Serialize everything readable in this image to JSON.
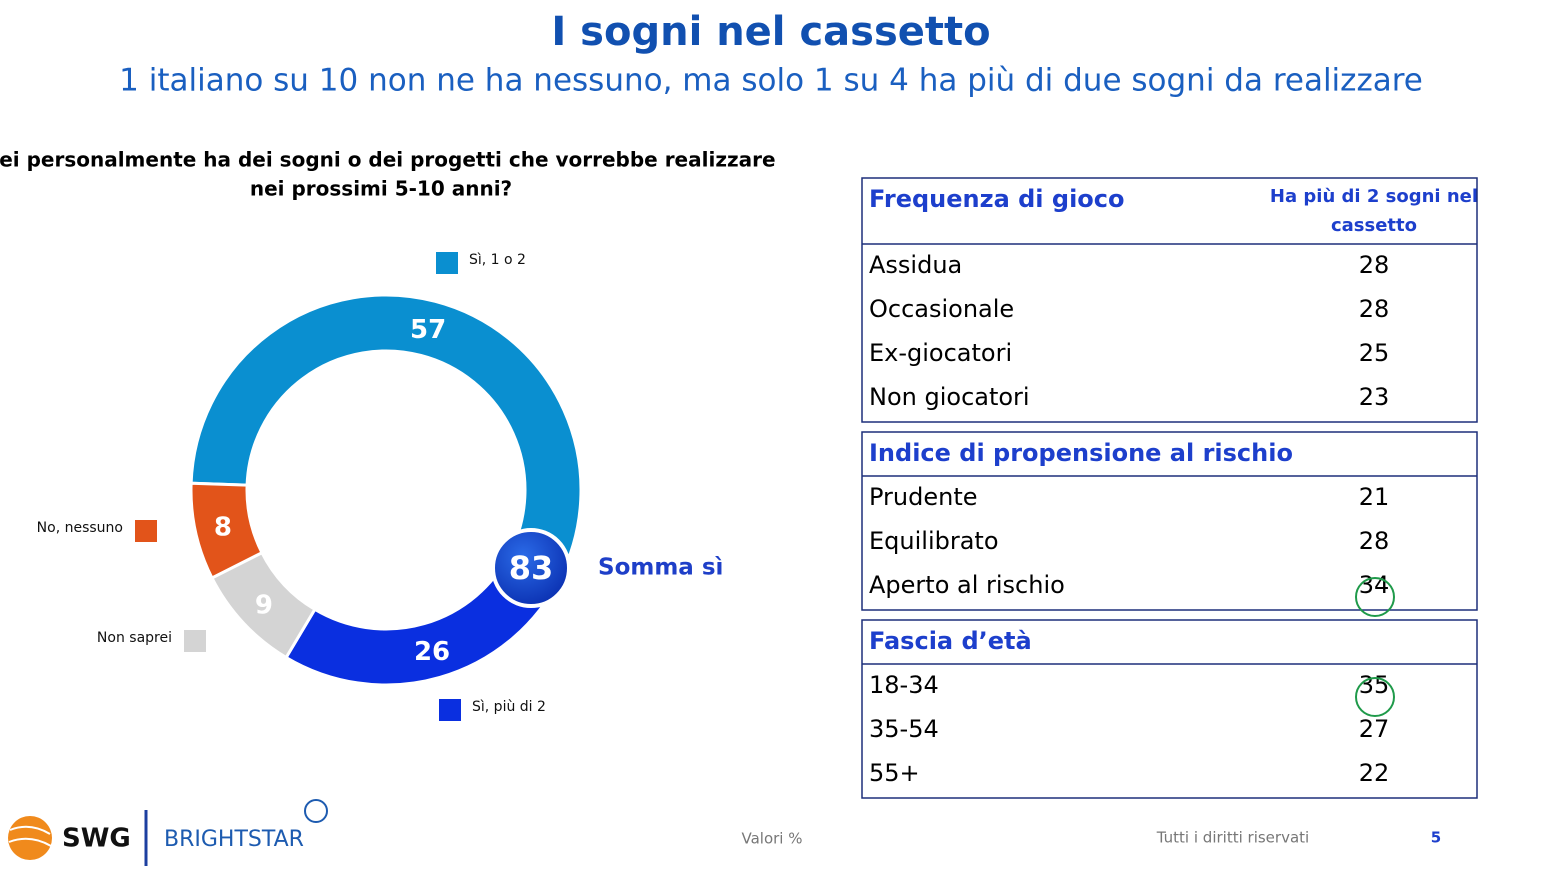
{
  "chart_data": {
    "type": "donut",
    "title": "I sogni nel cassetto",
    "subtitle": "1 italiano su 10 non ne ha nessuno, ma solo 1 su 4 ha più di due sogni da realizzare",
    "question": [
      "Lei personalmente ha dei sogni o dei progetti che vorrebbe realizzare",
      "nei prossimi 5-10 anni?"
    ],
    "categories": [
      "Sì, 1 o 2",
      "Sì, più di 2",
      "Non saprei",
      "No, nessuno"
    ],
    "values": [
      57,
      26,
      9,
      8
    ],
    "colors": [
      "#0a8fd0",
      "#0a2fe0",
      "#d4d4d4",
      "#e2541a"
    ],
    "sum": {
      "label": "Somma sì",
      "value": 83
    }
  },
  "table": {
    "column_header": [
      "Ha più di 2 sogni nel",
      "cassetto"
    ],
    "sections": [
      {
        "header": "Frequenza di gioco",
        "rows": [
          {
            "label": "Assidua",
            "value": 28
          },
          {
            "label": "Occasionale",
            "value": 28
          },
          {
            "label": "Ex-giocatori",
            "value": 25
          },
          {
            "label": "Non giocatori",
            "value": 23
          }
        ]
      },
      {
        "header": "Indice di propensione al rischio",
        "rows": [
          {
            "label": "Prudente",
            "value": 21
          },
          {
            "label": "Equilibrato",
            "value": 28
          },
          {
            "label": "Aperto al rischio",
            "value": 34,
            "highlight": true
          }
        ]
      },
      {
        "header": "Fascia d’età",
        "rows": [
          {
            "label": "18-34",
            "value": 35,
            "highlight": true
          },
          {
            "label": "35-54",
            "value": 27
          },
          {
            "label": "55+",
            "value": 22
          }
        ]
      }
    ]
  },
  "footer": {
    "logo_left": "SWG",
    "logo_right": "BRIGHTSTAR",
    "note": "Valori %",
    "rights": "Tutti i diritti riservati",
    "page": "5"
  }
}
